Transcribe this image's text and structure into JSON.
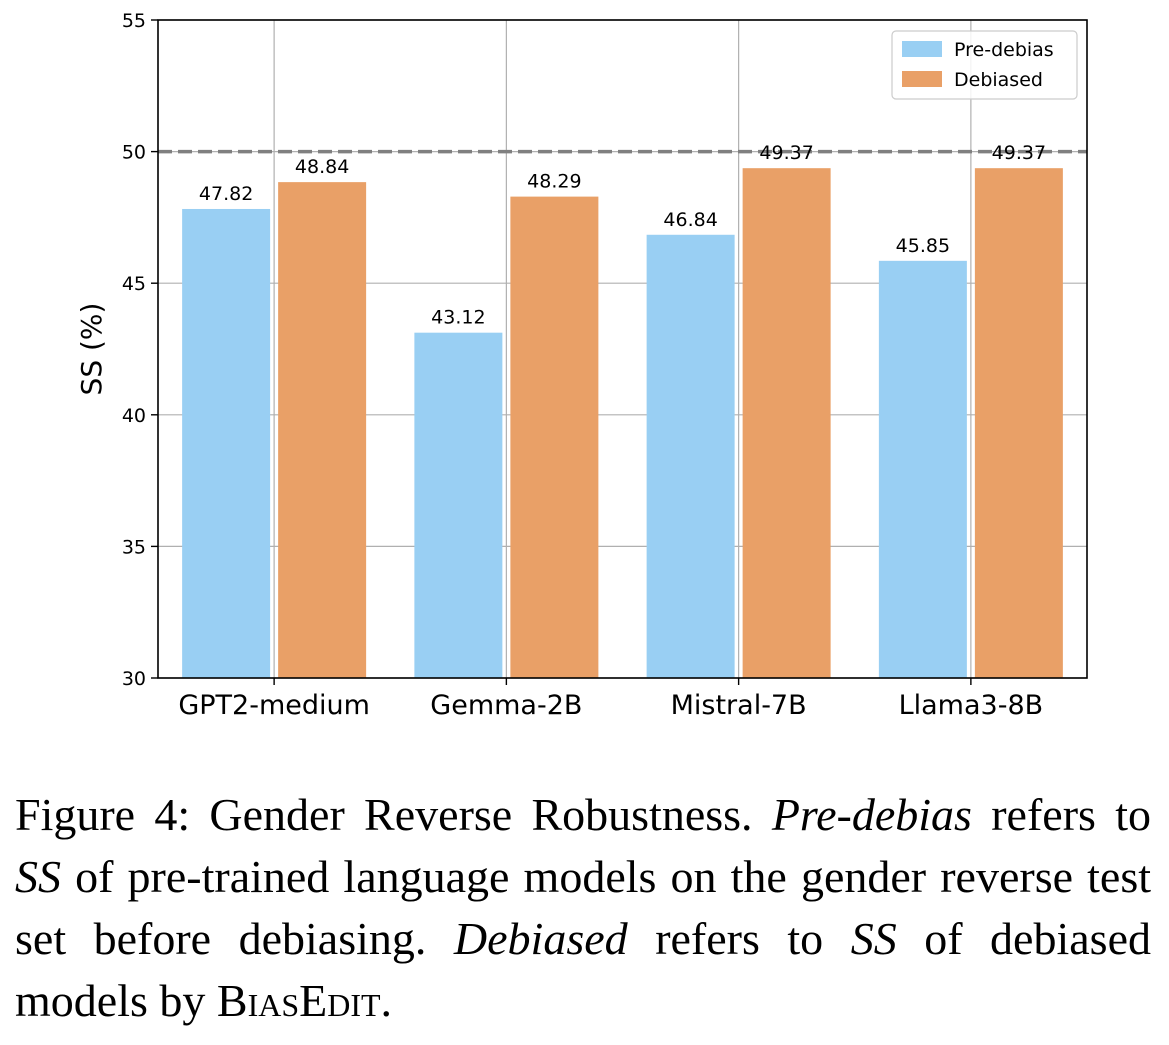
{
  "chart_data": {
    "type": "bar",
    "categories": [
      "GPT2-medium",
      "Gemma-2B",
      "Mistral-7B",
      "Llama3-8B"
    ],
    "series": [
      {
        "name": "Pre-debias",
        "color": "#99CFF3",
        "values": [
          47.82,
          43.12,
          46.84,
          45.85
        ]
      },
      {
        "name": "Debiased",
        "color": "#E9A067",
        "values": [
          48.84,
          48.29,
          49.37,
          49.37
        ]
      }
    ],
    "ylabel": "SS (%)",
    "xlabel": "",
    "ylim": [
      30,
      55
    ],
    "yticks": [
      30,
      35,
      40,
      45,
      50,
      55
    ],
    "reference_line": {
      "y": 50,
      "style": "dashed",
      "color": "#808080"
    },
    "grid": true,
    "legend": "top-right",
    "data_labels": true
  },
  "caption": {
    "prefix": "Figure 4: Gender Reverse Robustness. ",
    "term1": "Pre-debias",
    "mid1": " refers to ",
    "term2": "SS",
    "mid2": " of pre-trained language models on the gender reverse test set before debiasing. ",
    "term3": "Debiased",
    "mid3": " refers to ",
    "term4": "SS",
    "mid4": " of debiased models by ",
    "method": "BiasEdit",
    "end": "."
  }
}
